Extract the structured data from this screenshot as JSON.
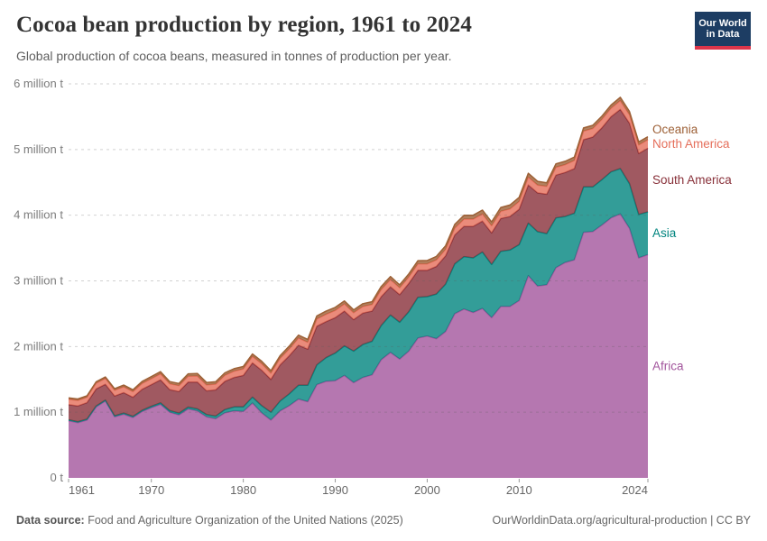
{
  "header": {
    "title": "Cocoa bean production by region, 1961 to 2024",
    "subtitle": "Global production of cocoa beans, measured in tonnes of production per year."
  },
  "logo": {
    "line1": "Our World",
    "line2": "in Data",
    "bg_color": "#1d3d63",
    "bar_color": "#dc354a"
  },
  "footer": {
    "source_label": "Data source:",
    "source_text": "Food and Agriculture Organization of the United Nations (2025)",
    "right_text": "OurWorldinData.org/agricultural-production | CC BY"
  },
  "chart_data": {
    "type": "area",
    "stacked": true,
    "title": "Cocoa bean production by region, 1961 to 2024",
    "xlabel": "",
    "ylabel": "tonnes of production per year",
    "values_unit": "million tonnes",
    "ylim": [
      0,
      6
    ],
    "grid": "dashed horizontal gridlines, drawn over areas",
    "legend_position": "right-edge series labels",
    "x": [
      1961,
      1962,
      1963,
      1964,
      1965,
      1966,
      1967,
      1968,
      1969,
      1970,
      1971,
      1972,
      1973,
      1974,
      1975,
      1976,
      1977,
      1978,
      1979,
      1980,
      1981,
      1982,
      1983,
      1984,
      1985,
      1986,
      1987,
      1988,
      1989,
      1990,
      1991,
      1992,
      1993,
      1994,
      1995,
      1996,
      1997,
      1998,
      1999,
      2000,
      2001,
      2002,
      2003,
      2004,
      2005,
      2006,
      2007,
      2008,
      2009,
      2010,
      2011,
      2012,
      2013,
      2014,
      2015,
      2016,
      2017,
      2018,
      2019,
      2020,
      2021,
      2022,
      2023,
      2024
    ],
    "xticks": [
      1961,
      1970,
      1980,
      1990,
      2000,
      2010,
      2024
    ],
    "yticks": [
      {
        "value": 0,
        "label": "0 t"
      },
      {
        "value": 1,
        "label": "1 million t"
      },
      {
        "value": 2,
        "label": "2 million t"
      },
      {
        "value": 3,
        "label": "3 million t"
      },
      {
        "value": 4,
        "label": "4 million t"
      },
      {
        "value": 5,
        "label": "5 million t"
      },
      {
        "value": 6,
        "label": "6 million t"
      }
    ],
    "series": [
      {
        "name": "Africa",
        "color": "#a2559c",
        "values": [
          0.87,
          0.84,
          0.88,
          1.08,
          1.17,
          0.93,
          0.97,
          0.92,
          1.01,
          1.07,
          1.12,
          1.0,
          0.96,
          1.05,
          1.02,
          0.93,
          0.9,
          0.99,
          1.02,
          1.01,
          1.14,
          0.99,
          0.88,
          1.02,
          1.1,
          1.2,
          1.16,
          1.42,
          1.47,
          1.48,
          1.56,
          1.45,
          1.53,
          1.57,
          1.8,
          1.91,
          1.81,
          1.93,
          2.13,
          2.16,
          2.12,
          2.23,
          2.5,
          2.57,
          2.52,
          2.58,
          2.44,
          2.61,
          2.61,
          2.7,
          3.08,
          2.92,
          2.94,
          3.2,
          3.28,
          3.32,
          3.74,
          3.75,
          3.85,
          3.96,
          4.02,
          3.8,
          3.35,
          3.4
        ]
      },
      {
        "name": "Asia",
        "color": "#00847e",
        "values": [
          0.015,
          0.015,
          0.015,
          0.015,
          0.015,
          0.016,
          0.017,
          0.018,
          0.019,
          0.02,
          0.022,
          0.024,
          0.026,
          0.028,
          0.03,
          0.035,
          0.04,
          0.05,
          0.06,
          0.07,
          0.09,
          0.11,
          0.12,
          0.15,
          0.18,
          0.21,
          0.25,
          0.3,
          0.36,
          0.42,
          0.45,
          0.48,
          0.5,
          0.51,
          0.52,
          0.57,
          0.56,
          0.6,
          0.62,
          0.6,
          0.68,
          0.72,
          0.76,
          0.8,
          0.83,
          0.86,
          0.81,
          0.84,
          0.86,
          0.85,
          0.8,
          0.83,
          0.78,
          0.76,
          0.7,
          0.71,
          0.69,
          0.68,
          0.69,
          0.7,
          0.69,
          0.68,
          0.66,
          0.65
        ]
      },
      {
        "name": "South America",
        "color": "#883039",
        "values": [
          0.23,
          0.24,
          0.25,
          0.26,
          0.24,
          0.3,
          0.31,
          0.29,
          0.32,
          0.33,
          0.35,
          0.32,
          0.33,
          0.38,
          0.41,
          0.36,
          0.4,
          0.43,
          0.45,
          0.48,
          0.52,
          0.54,
          0.5,
          0.55,
          0.58,
          0.61,
          0.55,
          0.59,
          0.55,
          0.54,
          0.53,
          0.48,
          0.48,
          0.46,
          0.44,
          0.43,
          0.42,
          0.43,
          0.41,
          0.4,
          0.42,
          0.43,
          0.44,
          0.46,
          0.48,
          0.47,
          0.48,
          0.5,
          0.51,
          0.54,
          0.58,
          0.59,
          0.6,
          0.65,
          0.67,
          0.68,
          0.72,
          0.76,
          0.79,
          0.84,
          0.9,
          0.92,
          0.93,
          0.97
        ]
      },
      {
        "name": "North America",
        "color": "#e56e5a",
        "values": [
          0.084,
          0.085,
          0.082,
          0.086,
          0.09,
          0.088,
          0.09,
          0.086,
          0.09,
          0.09,
          0.092,
          0.09,
          0.088,
          0.09,
          0.092,
          0.09,
          0.088,
          0.092,
          0.095,
          0.1,
          0.1,
          0.1,
          0.095,
          0.1,
          0.105,
          0.11,
          0.105,
          0.11,
          0.11,
          0.11,
          0.11,
          0.105,
          0.1,
          0.1,
          0.11,
          0.11,
          0.105,
          0.1,
          0.1,
          0.1,
          0.1,
          0.1,
          0.105,
          0.11,
          0.11,
          0.11,
          0.11,
          0.11,
          0.115,
          0.12,
          0.12,
          0.12,
          0.12,
          0.12,
          0.12,
          0.125,
          0.13,
          0.13,
          0.13,
          0.13,
          0.135,
          0.13,
          0.13,
          0.13
        ]
      },
      {
        "name": "Oceania",
        "color": "#9d6036",
        "values": [
          0.02,
          0.021,
          0.022,
          0.022,
          0.022,
          0.024,
          0.026,
          0.028,
          0.03,
          0.032,
          0.033,
          0.033,
          0.034,
          0.036,
          0.038,
          0.037,
          0.036,
          0.037,
          0.038,
          0.035,
          0.036,
          0.037,
          0.038,
          0.04,
          0.042,
          0.043,
          0.044,
          0.046,
          0.048,
          0.046,
          0.044,
          0.043,
          0.042,
          0.043,
          0.045,
          0.046,
          0.044,
          0.046,
          0.048,
          0.05,
          0.052,
          0.054,
          0.056,
          0.058,
          0.06,
          0.058,
          0.056,
          0.058,
          0.06,
          0.062,
          0.058,
          0.056,
          0.054,
          0.052,
          0.05,
          0.05,
          0.048,
          0.048,
          0.047,
          0.047,
          0.05,
          0.048,
          0.046,
          0.045
        ]
      }
    ]
  }
}
